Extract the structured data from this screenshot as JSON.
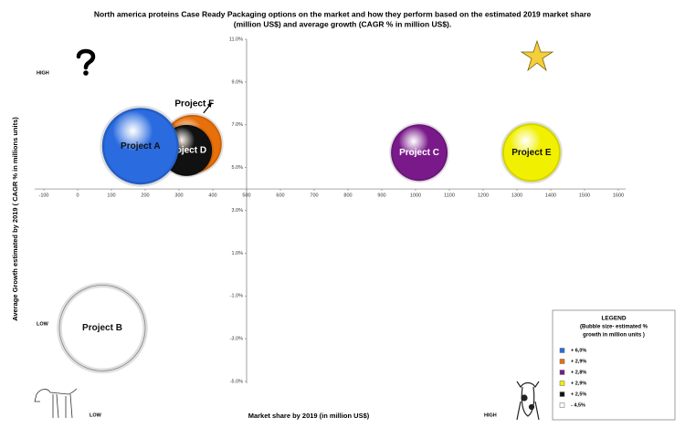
{
  "chart_data": {
    "type": "bubble",
    "title_lines": [
      "North america proteins Case Ready Packaging options on the market and how they perform based on the estimated 2019 market share",
      "(million US$) and average growth (CAGR % in million US$)."
    ],
    "x_label": "Market share by 2019 (in million US$)",
    "y_label": "Average Growth estimated  by 2019 ( CAGR % in millions units)",
    "xlim": [
      -100,
      1600
    ],
    "xticks": [
      -100,
      0,
      100,
      200,
      300,
      400,
      500,
      600,
      700,
      800,
      900,
      1000,
      1100,
      1200,
      1300,
      1400,
      1500,
      1600
    ],
    "ylim": [
      -5,
      11
    ],
    "yticks": [
      {
        "value": 11,
        "label": "11.0%"
      },
      {
        "value": 9,
        "label": "9.0%"
      },
      {
        "value": 7,
        "label": "7.0%"
      },
      {
        "value": 5,
        "label": "5.0%"
      },
      {
        "value": 3,
        "label": "3.0%"
      },
      {
        "value": 1,
        "label": "1.0%"
      },
      {
        "value": -1,
        "label": "-1.0%"
      },
      {
        "value": -3,
        "label": "-3.0%"
      },
      {
        "value": -5,
        "label": "-5.0%"
      }
    ],
    "x_axis_at": 4,
    "y_axis_at": 500,
    "points": [
      {
        "label": "Project F",
        "x": 340,
        "y": 6.1,
        "size": 32,
        "color": "#e8700a"
      },
      {
        "label": "Project D",
        "x": 322,
        "y": 5.8,
        "size": 28,
        "color": "#111111"
      },
      {
        "label": "Project A",
        "x": 186,
        "y": 6.0,
        "size": 42,
        "color": "#2a6be0"
      },
      {
        "label": "Project C",
        "x": 1011,
        "y": 5.7,
        "size": 31,
        "color": "#7a1a8a"
      },
      {
        "label": "Project E",
        "x": 1343,
        "y": 5.7,
        "size": 32,
        "color": "#f0f000"
      },
      {
        "label": "Project B",
        "x": 73,
        "y": -2.5,
        "size": 47,
        "color": "#ffffff"
      }
    ],
    "corner_labels": {
      "top_left": "HIGH",
      "left_low": "LOW",
      "bottom_low": "LOW",
      "bottom_high": "HIGH"
    },
    "legend": {
      "title": "LEGEND",
      "subtitle_lines": [
        "(Bubble size- estimated %",
        "growth in million units )"
      ],
      "items": [
        {
          "label": "+ 6,0%",
          "color": "#2a6be0"
        },
        {
          "label": "+ 2,9%",
          "color": "#e8700a"
        },
        {
          "label": "+ 2,8%",
          "color": "#7a1a8a"
        },
        {
          "label": "+ 2,9%",
          "color": "#f0f000"
        },
        {
          "label": "+ 2,5%",
          "color": "#111111"
        },
        {
          "label": "- 4,5%",
          "color": "#ffffff"
        }
      ]
    }
  }
}
